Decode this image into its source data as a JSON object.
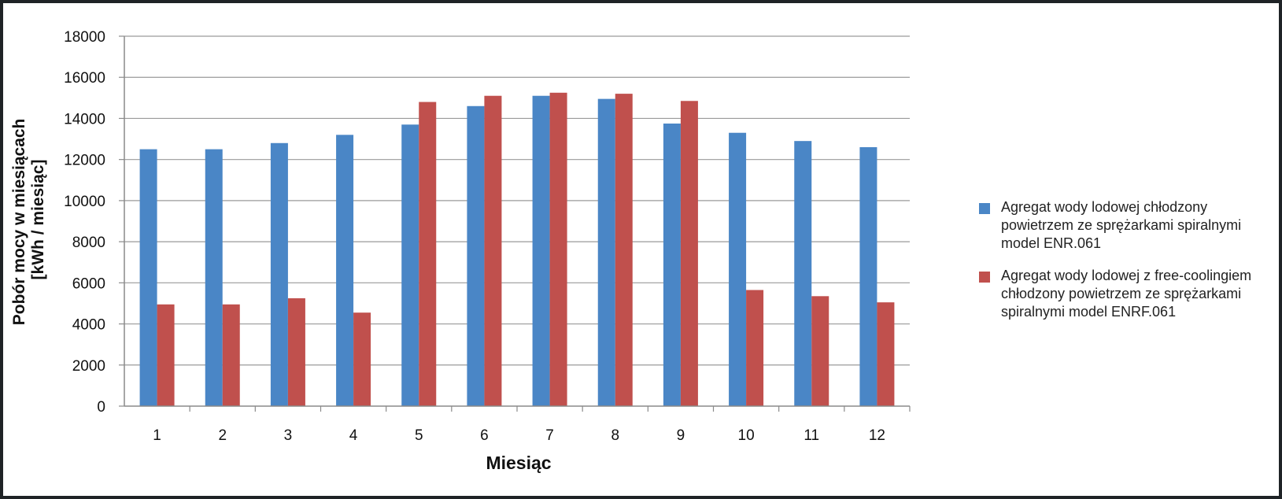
{
  "chart_data": {
    "type": "bar",
    "categories": [
      "1",
      "2",
      "3",
      "4",
      "5",
      "6",
      "7",
      "8",
      "9",
      "10",
      "11",
      "12"
    ],
    "series": [
      {
        "name": "Agregat wody lodowej chłodzony powietrzem ze sprężarkami spiralnymi model ENR.061",
        "color": "#4a86c6",
        "values": [
          12500,
          12500,
          12800,
          13200,
          13700,
          14600,
          15100,
          14950,
          13750,
          13300,
          12900,
          12600
        ]
      },
      {
        "name": "Agregat wody lodowej z free-coolingiem chłodzony powietrzem ze sprężarkami spiralnymi model ENRF.061",
        "color": "#c0504d",
        "values": [
          4950,
          4950,
          5250,
          4550,
          14800,
          15100,
          15250,
          15200,
          14850,
          5650,
          5350,
          5050
        ]
      }
    ],
    "xlabel": "Miesiąc",
    "ylabel": "Pobór mocy w miesiącach [kWh / miesiąc]",
    "ylabel_lines": [
      "Pobór mocy w miesiącach",
      "[kWh / miesiąc]"
    ],
    "ylim": [
      0,
      18000
    ],
    "yticks": [
      0,
      2000,
      4000,
      6000,
      8000,
      10000,
      12000,
      14000,
      16000,
      18000
    ],
    "grid": true,
    "legend_position": "right"
  }
}
